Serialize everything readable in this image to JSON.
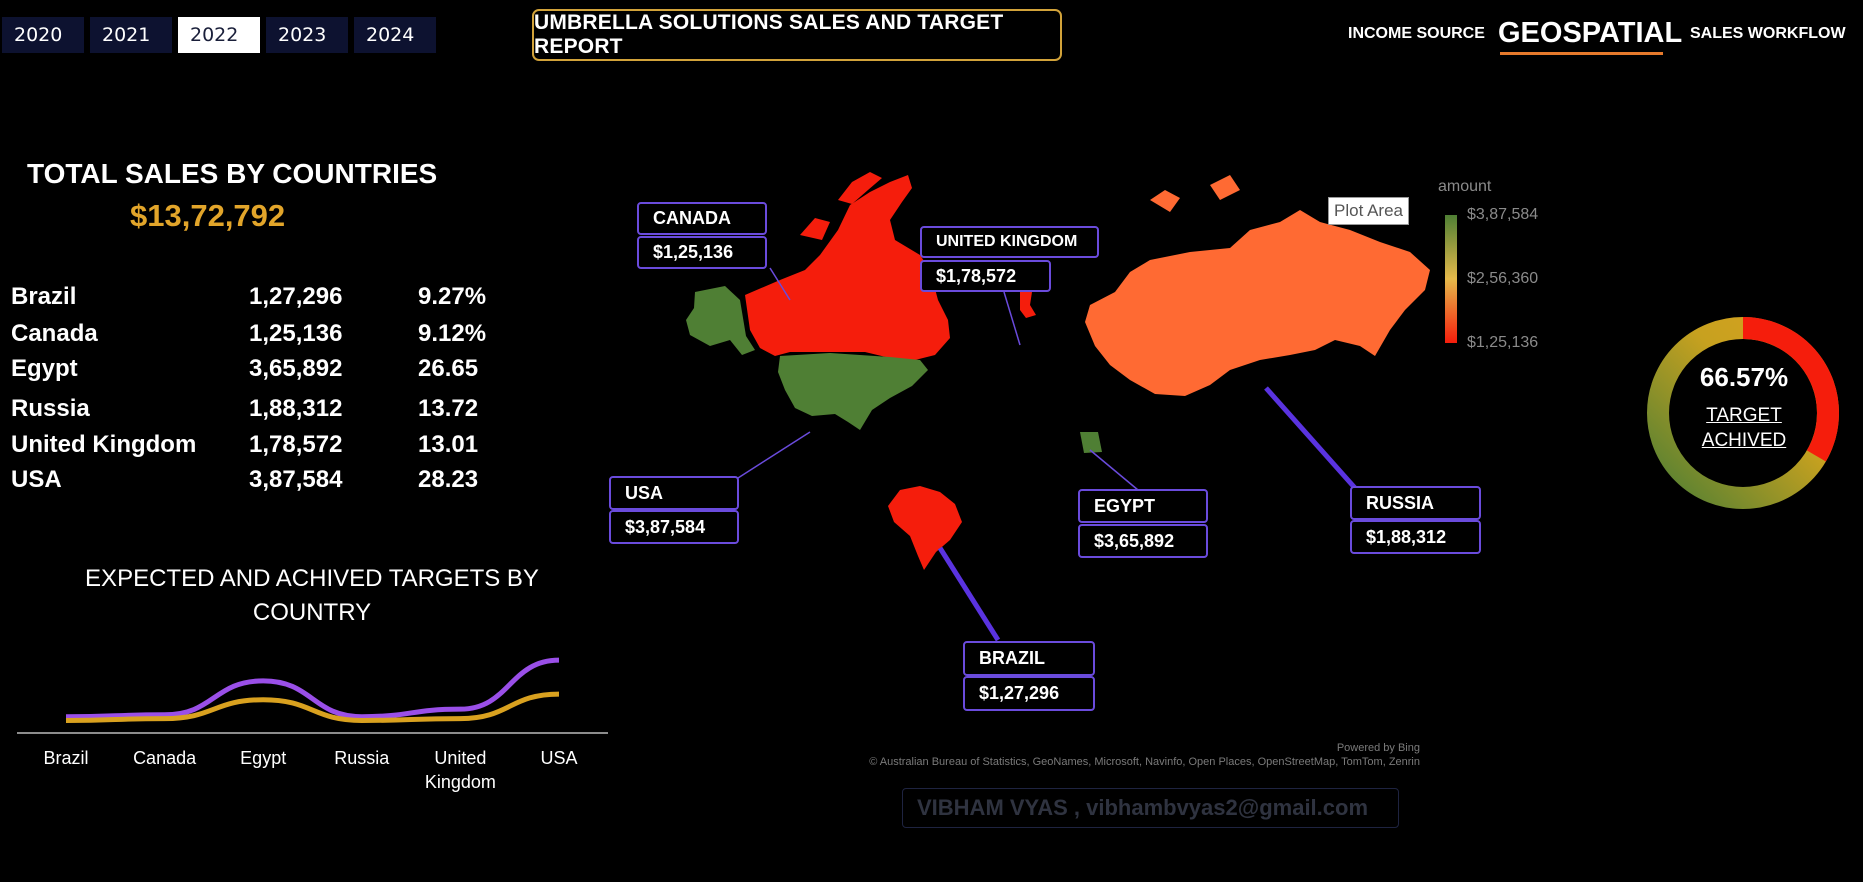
{
  "years": [
    "2020",
    "2021",
    "2022",
    "2023",
    "2024"
  ],
  "selected_year": "2022",
  "title": "UMBRELLA SOLUTIONS SALES AND TARGET REPORT",
  "nav": {
    "income": "INCOME SOURCE",
    "geospatial": "GEOSPATIAL",
    "workflow": "SALES WORKFLOW"
  },
  "total_sales": {
    "title": "TOTAL SALES BY COUNTRIES",
    "value": "$13,72,792",
    "rows": [
      {
        "country": "Brazil",
        "amount": "1,27,296",
        "pct": "9.27%"
      },
      {
        "country": "Canada",
        "amount": "1,25,136",
        "pct": "9.12%"
      },
      {
        "country": "Egypt",
        "amount": "3,65,892",
        "pct": "26.65"
      },
      {
        "country": "Russia",
        "amount": "1,88,312",
        "pct": "13.72"
      },
      {
        "country": "United Kingdom",
        "amount": "1,78,572",
        "pct": "13.01"
      },
      {
        "country": "USA",
        "amount": "3,87,584",
        "pct": "28.23"
      }
    ]
  },
  "targets_title_line1": "EXPECTED AND ACHIVED TARGETS BY",
  "targets_title_line2": "COUNTRY",
  "chart_data": {
    "type": "line",
    "categories": [
      "Brazil",
      "Canada",
      "Egypt",
      "Russia",
      "United Kingdom",
      "USA"
    ],
    "category_lines": [
      [
        "Brazil"
      ],
      [
        "Canada"
      ],
      [
        "Egypt"
      ],
      [
        "Russia"
      ],
      [
        "United",
        "Kingdom"
      ],
      [
        "USA"
      ]
    ],
    "series": [
      {
        "values": [
          0.6,
          0.7,
          2.5,
          0.6,
          1.0,
          3.6
        ],
        "color": "#9a4fe8"
      },
      {
        "values": [
          0.4,
          0.5,
          1.5,
          0.4,
          0.5,
          1.8
        ],
        "color": "#d9a11f"
      }
    ],
    "ylim": [
      0,
      4
    ],
    "grid": false,
    "legend": "none"
  },
  "map": {
    "callouts": [
      {
        "label": "CANADA",
        "value": "$1,25,136"
      },
      {
        "label": "UNITED  KINGDOM",
        "value": "$1,78,572"
      },
      {
        "label": "USA",
        "value": "$3,87,584"
      },
      {
        "label": "EGYPT",
        "value": "$3,65,892"
      },
      {
        "label": "RUSSIA",
        "value": "$1,88,312"
      },
      {
        "label": "BRAZIL",
        "value": "$1,27,296"
      }
    ],
    "plot_area": "Plot Area",
    "legend_title": "amount",
    "legend_max": "$3,87,584",
    "legend_mid": "$2,56,360",
    "legend_min": "$1,25,136",
    "colors": {
      "high": "#4f7f34",
      "mid": "#e5b94a",
      "low": "#f51d0c",
      "russia": "#ff6a33"
    },
    "powered_by": "Powered by Bing",
    "credits": "© Australian Bureau of Statistics, GeoNames, Microsoft, Navinfo, Open Places, OpenStreetMap, TomTom, Zenrin"
  },
  "gauge": {
    "percent": "66.57%",
    "value": 0.6657,
    "label_line1": "TARGET",
    "label_line2": "ACHIVED"
  },
  "signature": "VIBHAM VYAS  , vibhambvyas2@gmail.com"
}
